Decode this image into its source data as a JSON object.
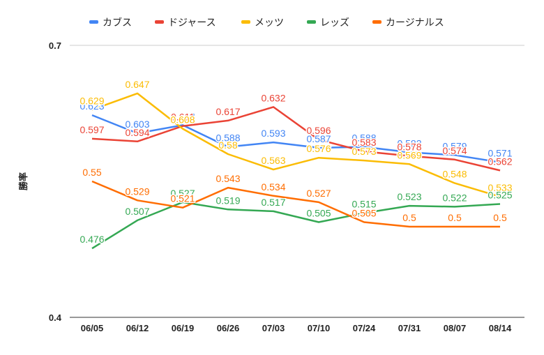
{
  "chart_data": {
    "type": "line",
    "title": "",
    "xlabel": "",
    "ylabel": "勝率",
    "ylim": [
      0.4,
      0.7
    ],
    "y_ticks": [
      "0.4",
      "0.7"
    ],
    "legend_position": "top",
    "categories": [
      "06/05",
      "06/12",
      "06/19",
      "06/26",
      "07/03",
      "07/10",
      "07/24",
      "07/31",
      "08/07",
      "08/14"
    ],
    "series": [
      {
        "name": "カブス",
        "color": "#4285f4",
        "values": [
          0.623,
          0.603,
          0.612,
          0.588,
          0.593,
          0.587,
          0.588,
          0.582,
          0.579,
          0.571
        ],
        "labels": [
          "0.623",
          "0.603",
          "0.612",
          "0.588",
          "0.593",
          "0.587",
          "0.588",
          "0.582",
          "0.579",
          "0.571"
        ]
      },
      {
        "name": "ドジャース",
        "color": "#ea4335",
        "values": [
          0.597,
          0.594,
          0.611,
          0.617,
          0.632,
          0.596,
          0.583,
          0.578,
          0.574,
          0.562
        ],
        "labels": [
          "0.597",
          "0.594",
          "0.611",
          "0.617",
          "0.632",
          "0.596",
          "0.583",
          "0.578",
          "0.574",
          "0.562"
        ]
      },
      {
        "name": "メッツ",
        "color": "#fbbc04",
        "values": [
          0.629,
          0.647,
          0.608,
          0.58,
          0.563,
          0.576,
          0.573,
          0.569,
          0.548,
          0.533
        ],
        "labels": [
          "0.629",
          "0.647",
          "0.608",
          "0.58",
          "0.563",
          "0.576",
          "0.573",
          "0.569",
          "0.548",
          "0.533"
        ]
      },
      {
        "name": "レッズ",
        "color": "#34a853",
        "values": [
          0.476,
          0.507,
          0.527,
          0.519,
          0.517,
          0.505,
          0.515,
          0.523,
          0.522,
          0.525
        ],
        "labels": [
          "0.476",
          "0.507",
          "0.527",
          "0.519",
          "0.517",
          "0.505",
          "0.515",
          "0.523",
          "0.522",
          "0.525"
        ]
      },
      {
        "name": "カージナルス",
        "color": "#ff6d01",
        "values": [
          0.55,
          0.529,
          0.521,
          0.543,
          0.534,
          0.527,
          0.505,
          0.5,
          0.5,
          0.5
        ],
        "labels": [
          "0.55",
          "0.529",
          "0.521",
          "0.543",
          "0.534",
          "0.527",
          "0.505",
          "0.5",
          "0.5",
          "0.5"
        ]
      }
    ]
  }
}
